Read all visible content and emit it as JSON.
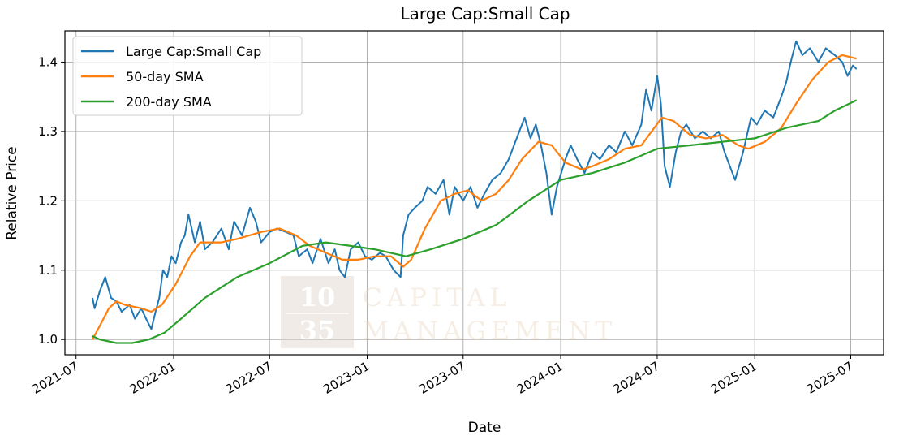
{
  "chart_data": {
    "type": "line",
    "title": "Large Cap:Small Cap",
    "xlabel": "Date",
    "ylabel": "Relative Price",
    "xlim": [
      "2021-06-10",
      "2025-09-01"
    ],
    "ylim": [
      0.978,
      1.445
    ],
    "grid": true,
    "legend_position": "top-left",
    "x_ticks": [
      "2021-07",
      "2022-01",
      "2022-07",
      "2023-01",
      "2023-07",
      "2024-01",
      "2024-07",
      "2025-01",
      "2025-07"
    ],
    "y_ticks": [
      "1.0",
      "1.1",
      "1.2",
      "1.3",
      "1.4"
    ],
    "series": [
      {
        "name": "Large Cap:Small Cap",
        "color": "#1f77b4",
        "points": [
          [
            "2021-08-01",
            1.06
          ],
          [
            "2021-08-05",
            1.045
          ],
          [
            "2021-08-15",
            1.07
          ],
          [
            "2021-08-25",
            1.09
          ],
          [
            "2021-09-05",
            1.06
          ],
          [
            "2021-09-15",
            1.055
          ],
          [
            "2021-09-25",
            1.04
          ],
          [
            "2021-10-10",
            1.05
          ],
          [
            "2021-10-20",
            1.03
          ],
          [
            "2021-11-01",
            1.045
          ],
          [
            "2021-11-10",
            1.03
          ],
          [
            "2021-11-20",
            1.015
          ],
          [
            "2021-11-28",
            1.04
          ],
          [
            "2021-12-05",
            1.06
          ],
          [
            "2021-12-12",
            1.1
          ],
          [
            "2021-12-20",
            1.09
          ],
          [
            "2021-12-28",
            1.12
          ],
          [
            "2022-01-05",
            1.11
          ],
          [
            "2022-01-15",
            1.14
          ],
          [
            "2022-01-22",
            1.15
          ],
          [
            "2022-01-29",
            1.18
          ],
          [
            "2022-02-10",
            1.14
          ],
          [
            "2022-02-20",
            1.17
          ],
          [
            "2022-03-01",
            1.13
          ],
          [
            "2022-03-15",
            1.14
          ],
          [
            "2022-04-01",
            1.16
          ],
          [
            "2022-04-15",
            1.13
          ],
          [
            "2022-04-25",
            1.17
          ],
          [
            "2022-05-10",
            1.15
          ],
          [
            "2022-05-25",
            1.19
          ],
          [
            "2022-06-05",
            1.17
          ],
          [
            "2022-06-15",
            1.14
          ],
          [
            "2022-07-01",
            1.155
          ],
          [
            "2022-07-15",
            1.16
          ],
          [
            "2022-08-01",
            1.155
          ],
          [
            "2022-08-15",
            1.15
          ],
          [
            "2022-08-25",
            1.12
          ],
          [
            "2022-09-10",
            1.13
          ],
          [
            "2022-09-20",
            1.11
          ],
          [
            "2022-10-05",
            1.145
          ],
          [
            "2022-10-20",
            1.11
          ],
          [
            "2022-11-01",
            1.13
          ],
          [
            "2022-11-10",
            1.1
          ],
          [
            "2022-11-20",
            1.09
          ],
          [
            "2022-12-01",
            1.13
          ],
          [
            "2022-12-15",
            1.14
          ],
          [
            "2022-12-28",
            1.12
          ],
          [
            "2023-01-10",
            1.115
          ],
          [
            "2023-01-25",
            1.125
          ],
          [
            "2023-02-05",
            1.12
          ],
          [
            "2023-02-20",
            1.1
          ],
          [
            "2023-03-05",
            1.09
          ],
          [
            "2023-03-10",
            1.15
          ],
          [
            "2023-03-20",
            1.18
          ],
          [
            "2023-04-01",
            1.19
          ],
          [
            "2023-04-15",
            1.2
          ],
          [
            "2023-04-25",
            1.22
          ],
          [
            "2023-05-10",
            1.21
          ],
          [
            "2023-05-25",
            1.23
          ],
          [
            "2023-06-05",
            1.18
          ],
          [
            "2023-06-15",
            1.22
          ],
          [
            "2023-07-01",
            1.2
          ],
          [
            "2023-07-15",
            1.22
          ],
          [
            "2023-07-28",
            1.19
          ],
          [
            "2023-08-10",
            1.21
          ],
          [
            "2023-08-25",
            1.23
          ],
          [
            "2023-09-10",
            1.24
          ],
          [
            "2023-09-25",
            1.26
          ],
          [
            "2023-10-05",
            1.28
          ],
          [
            "2023-10-15",
            1.3
          ],
          [
            "2023-10-25",
            1.32
          ],
          [
            "2023-11-05",
            1.29
          ],
          [
            "2023-11-15",
            1.31
          ],
          [
            "2023-11-25",
            1.28
          ],
          [
            "2023-12-05",
            1.24
          ],
          [
            "2023-12-15",
            1.18
          ],
          [
            "2023-12-25",
            1.22
          ],
          [
            "2024-01-10",
            1.26
          ],
          [
            "2024-01-20",
            1.28
          ],
          [
            "2024-02-01",
            1.26
          ],
          [
            "2024-02-15",
            1.24
          ],
          [
            "2024-03-01",
            1.27
          ],
          [
            "2024-03-15",
            1.26
          ],
          [
            "2024-04-01",
            1.28
          ],
          [
            "2024-04-15",
            1.27
          ],
          [
            "2024-05-01",
            1.3
          ],
          [
            "2024-05-15",
            1.28
          ],
          [
            "2024-06-01",
            1.31
          ],
          [
            "2024-06-10",
            1.36
          ],
          [
            "2024-06-20",
            1.33
          ],
          [
            "2024-07-01",
            1.38
          ],
          [
            "2024-07-08",
            1.34
          ],
          [
            "2024-07-15",
            1.25
          ],
          [
            "2024-07-25",
            1.22
          ],
          [
            "2024-08-05",
            1.27
          ],
          [
            "2024-08-15",
            1.3
          ],
          [
            "2024-08-25",
            1.31
          ],
          [
            "2024-09-10",
            1.29
          ],
          [
            "2024-09-25",
            1.3
          ],
          [
            "2024-10-10",
            1.29
          ],
          [
            "2024-10-25",
            1.3
          ],
          [
            "2024-11-05",
            1.27
          ],
          [
            "2024-11-15",
            1.25
          ],
          [
            "2024-11-25",
            1.23
          ],
          [
            "2024-12-10",
            1.27
          ],
          [
            "2024-12-25",
            1.32
          ],
          [
            "2025-01-05",
            1.31
          ],
          [
            "2025-01-20",
            1.33
          ],
          [
            "2025-02-05",
            1.32
          ],
          [
            "2025-02-20",
            1.35
          ],
          [
            "2025-03-01",
            1.37
          ],
          [
            "2025-03-10",
            1.4
          ],
          [
            "2025-03-20",
            1.43
          ],
          [
            "2025-04-01",
            1.41
          ],
          [
            "2025-04-15",
            1.42
          ],
          [
            "2025-05-01",
            1.4
          ],
          [
            "2025-05-15",
            1.42
          ],
          [
            "2025-06-01",
            1.41
          ],
          [
            "2025-06-15",
            1.4
          ],
          [
            "2025-06-25",
            1.38
          ],
          [
            "2025-07-05",
            1.395
          ],
          [
            "2025-07-12",
            1.39
          ]
        ]
      },
      {
        "name": "50-day SMA",
        "color": "#ff7f0e",
        "points": [
          [
            "2021-08-01",
            1.0
          ],
          [
            "2021-08-15",
            1.02
          ],
          [
            "2021-09-01",
            1.045
          ],
          [
            "2021-09-15",
            1.055
          ],
          [
            "2021-10-01",
            1.05
          ],
          [
            "2021-11-01",
            1.045
          ],
          [
            "2021-11-20",
            1.04
          ],
          [
            "2021-12-10",
            1.05
          ],
          [
            "2022-01-05",
            1.08
          ],
          [
            "2022-02-01",
            1.12
          ],
          [
            "2022-02-20",
            1.14
          ],
          [
            "2022-04-01",
            1.14
          ],
          [
            "2022-05-01",
            1.145
          ],
          [
            "2022-06-15",
            1.155
          ],
          [
            "2022-07-20",
            1.16
          ],
          [
            "2022-08-20",
            1.15
          ],
          [
            "2022-09-15",
            1.135
          ],
          [
            "2022-10-15",
            1.125
          ],
          [
            "2022-11-15",
            1.115
          ],
          [
            "2022-12-15",
            1.115
          ],
          [
            "2023-01-15",
            1.12
          ],
          [
            "2023-02-15",
            1.12
          ],
          [
            "2023-03-10",
            1.105
          ],
          [
            "2023-03-25",
            1.115
          ],
          [
            "2023-04-20",
            1.16
          ],
          [
            "2023-05-20",
            1.2
          ],
          [
            "2023-06-15",
            1.21
          ],
          [
            "2023-07-10",
            1.215
          ],
          [
            "2023-08-05",
            1.2
          ],
          [
            "2023-09-01",
            1.21
          ],
          [
            "2023-09-25",
            1.23
          ],
          [
            "2023-10-20",
            1.26
          ],
          [
            "2023-11-20",
            1.285
          ],
          [
            "2023-12-15",
            1.28
          ],
          [
            "2024-01-10",
            1.255
          ],
          [
            "2024-02-10",
            1.245
          ],
          [
            "2024-03-01",
            1.25
          ],
          [
            "2024-04-01",
            1.26
          ],
          [
            "2024-05-01",
            1.275
          ],
          [
            "2024-06-01",
            1.28
          ],
          [
            "2024-07-10",
            1.32
          ],
          [
            "2024-08-01",
            1.315
          ],
          [
            "2024-09-01",
            1.295
          ],
          [
            "2024-10-01",
            1.29
          ],
          [
            "2024-11-01",
            1.295
          ],
          [
            "2024-12-01",
            1.28
          ],
          [
            "2024-12-20",
            1.275
          ],
          [
            "2025-01-20",
            1.285
          ],
          [
            "2025-02-20",
            1.305
          ],
          [
            "2025-03-20",
            1.34
          ],
          [
            "2025-04-20",
            1.375
          ],
          [
            "2025-05-20",
            1.4
          ],
          [
            "2025-06-15",
            1.41
          ],
          [
            "2025-07-12",
            1.405
          ]
        ]
      },
      {
        "name": "200-day SMA",
        "color": "#2ca02c",
        "points": [
          [
            "2021-08-01",
            1.005
          ],
          [
            "2021-08-15",
            1.0
          ],
          [
            "2021-09-15",
            0.995
          ],
          [
            "2021-10-15",
            0.995
          ],
          [
            "2021-11-15",
            1.0
          ],
          [
            "2021-12-15",
            1.01
          ],
          [
            "2022-01-15",
            1.03
          ],
          [
            "2022-03-01",
            1.06
          ],
          [
            "2022-05-01",
            1.09
          ],
          [
            "2022-07-01",
            1.11
          ],
          [
            "2022-09-01",
            1.135
          ],
          [
            "2022-10-15",
            1.14
          ],
          [
            "2022-12-01",
            1.135
          ],
          [
            "2023-01-15",
            1.13
          ],
          [
            "2023-03-15",
            1.12
          ],
          [
            "2023-05-01",
            1.13
          ],
          [
            "2023-07-01",
            1.145
          ],
          [
            "2023-09-01",
            1.165
          ],
          [
            "2023-11-01",
            1.2
          ],
          [
            "2024-01-01",
            1.23
          ],
          [
            "2024-03-01",
            1.24
          ],
          [
            "2024-05-01",
            1.255
          ],
          [
            "2024-07-01",
            1.275
          ],
          [
            "2024-09-01",
            1.28
          ],
          [
            "2024-11-01",
            1.285
          ],
          [
            "2025-01-01",
            1.29
          ],
          [
            "2025-03-01",
            1.305
          ],
          [
            "2025-05-01",
            1.315
          ],
          [
            "2025-06-01",
            1.33
          ],
          [
            "2025-07-12",
            1.345
          ]
        ]
      }
    ]
  },
  "watermark": {
    "digits_top": "10",
    "digits_bottom": "35",
    "line1": "CAPITAL",
    "line2": "MANAGEMENT"
  }
}
